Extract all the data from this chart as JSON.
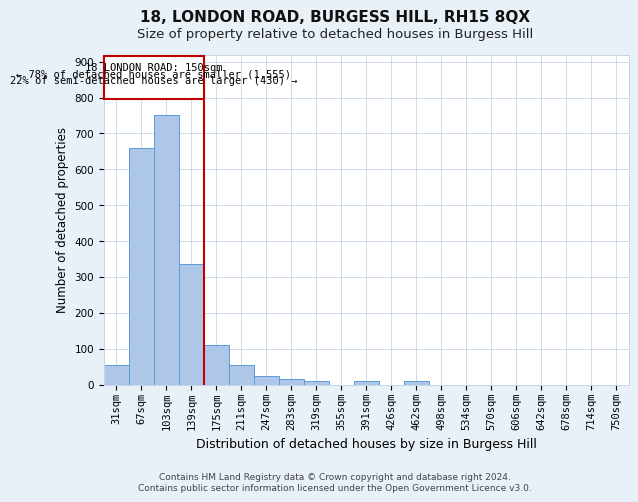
{
  "title": "18, LONDON ROAD, BURGESS HILL, RH15 8QX",
  "subtitle": "Size of property relative to detached houses in Burgess Hill",
  "xlabel": "Distribution of detached houses by size in Burgess Hill",
  "ylabel": "Number of detached properties",
  "categories": [
    "31sqm",
    "67sqm",
    "103sqm",
    "139sqm",
    "175sqm",
    "211sqm",
    "247sqm",
    "283sqm",
    "319sqm",
    "355sqm",
    "391sqm",
    "426sqm",
    "462sqm",
    "498sqm",
    "534sqm",
    "570sqm",
    "606sqm",
    "642sqm",
    "678sqm",
    "714sqm",
    "750sqm"
  ],
  "values": [
    55,
    660,
    750,
    335,
    110,
    53,
    25,
    15,
    10,
    0,
    10,
    0,
    10,
    0,
    0,
    0,
    0,
    0,
    0,
    0,
    0
  ],
  "bar_color": "#aec6e8",
  "bar_edge_color": "#5b9bd5",
  "property_line_x": 3.5,
  "property_line_color": "#c00000",
  "annotation_line1": "18 LONDON ROAD: 150sqm",
  "annotation_line2": "← 78% of detached houses are smaller (1,555)",
  "annotation_line3": "22% of semi-detached houses are larger (430) →",
  "annotation_box_color": "#c00000",
  "ylim": [
    0,
    920
  ],
  "yticks": [
    0,
    100,
    200,
    300,
    400,
    500,
    600,
    700,
    800,
    900
  ],
  "background_color": "#e8f0f8",
  "plot_background": "#ffffff",
  "grid_color": "#c8d4e8",
  "footer": "Contains HM Land Registry data © Crown copyright and database right 2024.\nContains public sector information licensed under the Open Government Licence v3.0.",
  "title_fontsize": 11,
  "subtitle_fontsize": 9.5,
  "xlabel_fontsize": 9,
  "ylabel_fontsize": 8.5,
  "tick_fontsize": 7.5,
  "footer_fontsize": 6.5
}
